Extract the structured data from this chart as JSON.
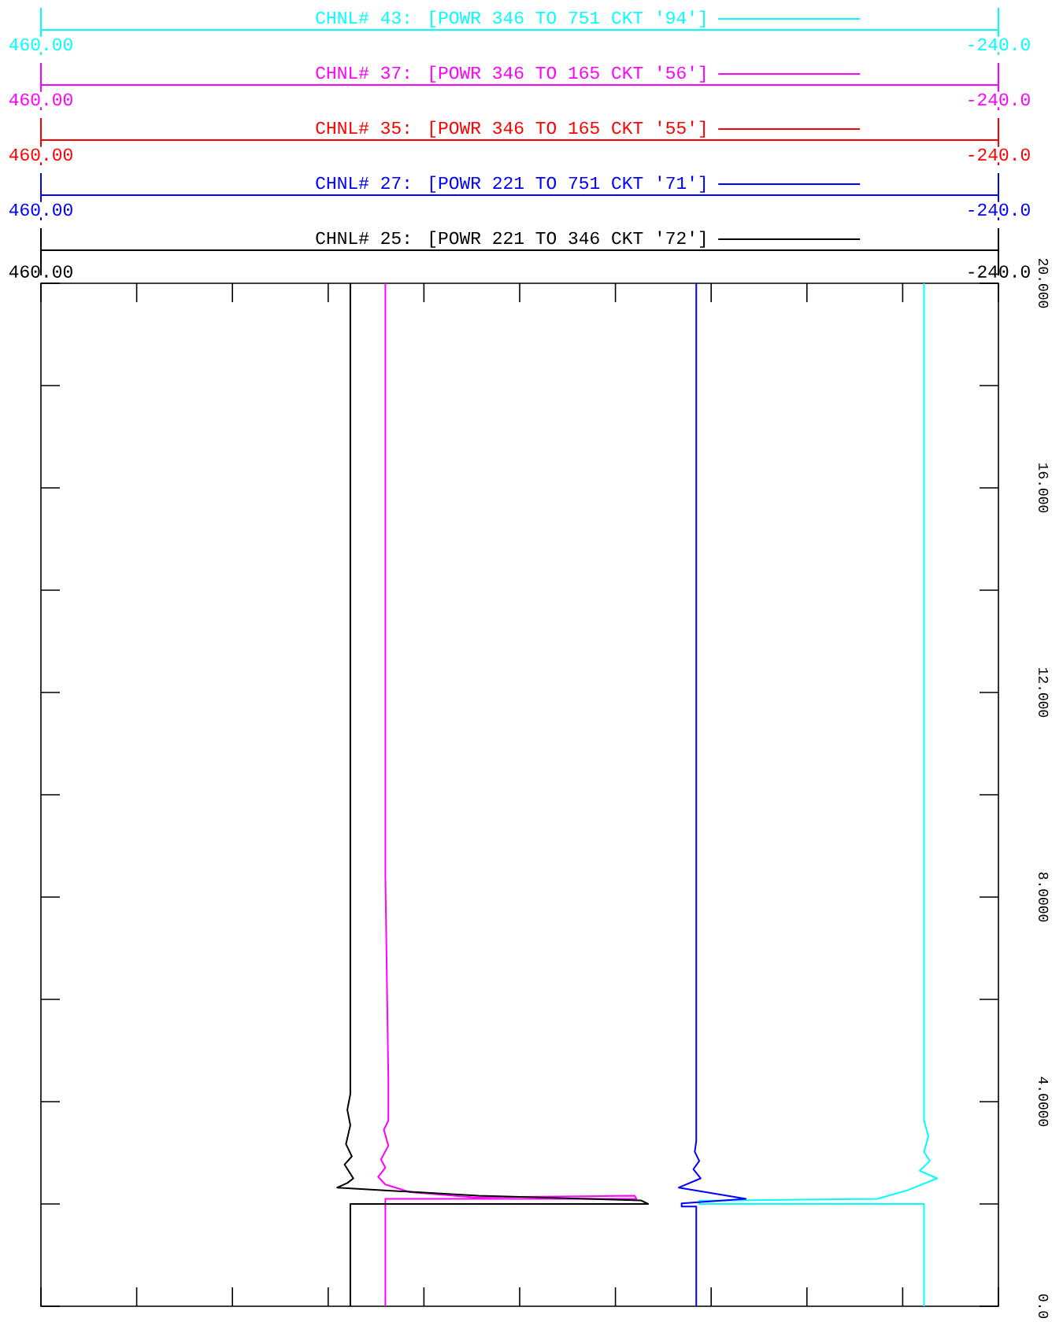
{
  "chart_data": {
    "type": "line",
    "legend": "top",
    "xlim": [
      460,
      -240
    ],
    "xticks": [
      {
        "value": 460,
        "label": "460.00"
      },
      {
        "value": 390,
        "label": null
      },
      {
        "value": 320,
        "label": null
      },
      {
        "value": 250,
        "label": null
      },
      {
        "value": 180,
        "label": null
      },
      {
        "value": 110,
        "label": null
      },
      {
        "value": 40,
        "label": null
      },
      {
        "value": -30,
        "label": null
      },
      {
        "value": -100,
        "label": null
      },
      {
        "value": -170,
        "label": null
      },
      {
        "value": -240,
        "label": "-240.0"
      }
    ],
    "ylim": [
      0,
      20
    ],
    "yticks": [
      {
        "value": 0,
        "label": "0.0"
      },
      {
        "value": 2,
        "label": null
      },
      {
        "value": 4,
        "label": "4.0000"
      },
      {
        "value": 6,
        "label": null
      },
      {
        "value": 8,
        "label": "8.0000"
      },
      {
        "value": 10,
        "label": null
      },
      {
        "value": 12,
        "label": "12.000"
      },
      {
        "value": 14,
        "label": null
      },
      {
        "value": 16,
        "label": "16.000"
      },
      {
        "value": 18,
        "label": null
      },
      {
        "value": 20,
        "label": "20.000"
      }
    ],
    "annotations": [
      "460.00",
      "-240.0",
      "460.00",
      "-240.0",
      "460.00",
      "-240.0",
      "460.00",
      "-240.0"
    ],
    "series": [
      {
        "name": "CHNL# 43: [POWR 346 TO 751 CKT '94']",
        "color": "#00ffff",
        "x": [
          -185.6,
          -185.6,
          -21.3,
          -21.3,
          -151.5,
          -172.8,
          -195.2,
          -182.4,
          -189.9,
          -185.6,
          -188.8,
          -185.6,
          -185.6
        ],
        "values": [
          0,
          2.0,
          2.0,
          2.06,
          2.1,
          2.26,
          2.5,
          2.65,
          2.84,
          3.02,
          3.32,
          3.63,
          20
        ]
      },
      {
        "name": "CHNL# 37: [POWR 346 TO 165 CKT '56']",
        "color": "#ff00ff",
        "x": [
          208.2,
          208.2,
          24.6,
          26,
          144.1,
          190,
          208.2,
          213.5,
          208.2,
          211.4,
          206,
          209.3,
          206,
          206,
          208.2,
          208.2
        ],
        "values": [
          0,
          2.1,
          2.1,
          2.16,
          2.13,
          2.23,
          2.38,
          2.53,
          2.71,
          2.87,
          3.14,
          3.45,
          3.63,
          4.45,
          8.41,
          20
        ]
      },
      {
        "name": "CHNL# 35: [POWR 346 TO 165 CKT '55']",
        "color": "#ff0000"
      },
      {
        "name": "CHNL# 27: [POWR 221 TO 751 CKT '71']",
        "color": "#0000ff",
        "x": [
          -19.1,
          -19.1,
          -8.4,
          -8.4,
          -55.4,
          -6.3,
          -22.3,
          -17,
          -21.3,
          -18,
          -19.1,
          -19.1
        ],
        "values": [
          0,
          1.95,
          1.95,
          2.01,
          2.1,
          2.32,
          2.5,
          2.68,
          2.84,
          3.02,
          3.23,
          20
        ]
      },
      {
        "name": "CHNL# 25: [POWR 221 TO 346 CKT '72']",
        "color": "#000000",
        "x": [
          233.8,
          233.8,
          16.1,
          21.4,
          140,
          243.4,
          236,
          231.6,
          238,
          232.7,
          237,
          233.8,
          236,
          233.8,
          233.8
        ],
        "values": [
          0,
          2.0,
          2.0,
          2.07,
          2.16,
          2.32,
          2.41,
          2.5,
          2.77,
          2.93,
          3.17,
          3.54,
          3.84,
          4.15,
          20
        ]
      }
    ]
  }
}
